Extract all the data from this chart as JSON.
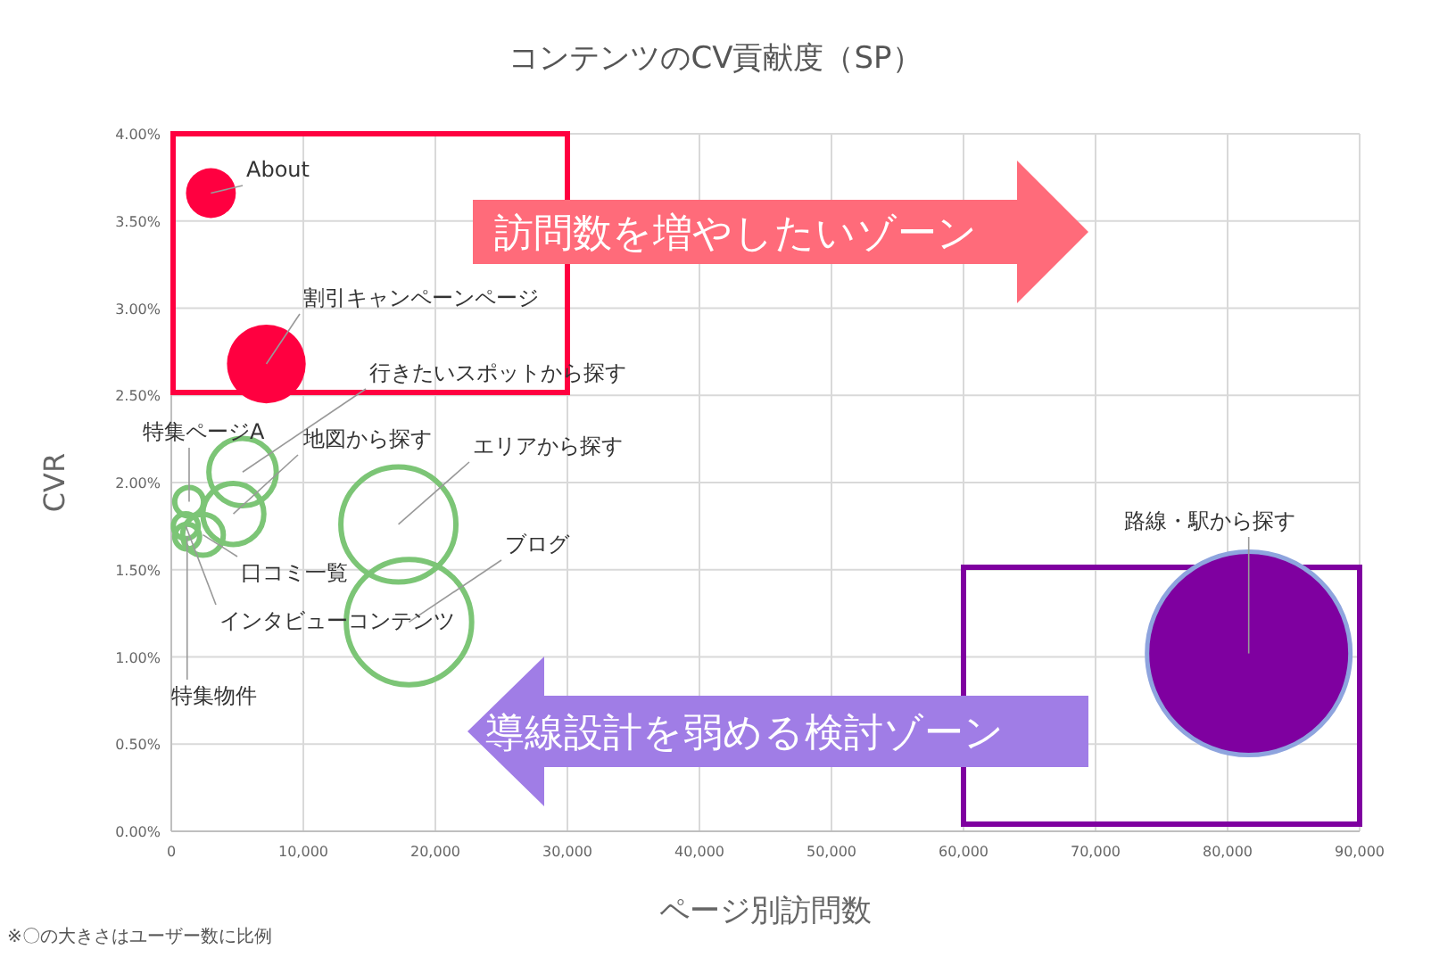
{
  "chart_data": {
    "type": "bubble",
    "title": "コンテンツのCV貢献度（SP）",
    "xlabel": "ページ別訪問数",
    "ylabel": "CVR",
    "series": [
      {
        "color": "#ff0040",
        "x": [
          3000,
          7200
        ],
        "values": [
          3.66,
          2.68
        ],
        "sizes": [
          0.06,
          0.15
        ]
      },
      {
        "color": "#7cc576",
        "x": [
          5400,
          4700,
          17200,
          18000,
          1350,
          2400,
          1100,
          1200
        ],
        "values": [
          2.06,
          1.82,
          1.76,
          1.2,
          1.89,
          1.7,
          1.75,
          1.69
        ],
        "sizes": [
          0.11,
          0.09,
          0.32,
          0.38,
          0.02,
          0.04,
          0.015,
          0.015
        ]
      },
      {
        "color": "#7f00a0",
        "x": [
          81600
        ],
        "values": [
          1.02
        ],
        "sizes": [
          1
        ]
      }
    ],
    "annotations": [
      {
        "text": "About",
        "x": 3000,
        "y": 3.66
      },
      {
        "text": "割引キャンペーンページ",
        "x": 7200,
        "y": 2.68
      },
      {
        "text": "行きたいスポットから探す",
        "x": 5400,
        "y": 2.06
      },
      {
        "text": "地図から探す",
        "x": 4700,
        "y": 1.82
      },
      {
        "text": "エリアから探す",
        "x": 17200,
        "y": 1.76
      },
      {
        "text": "ブログ",
        "x": 18000,
        "y": 1.2
      },
      {
        "text": "特集ページA",
        "x": 1350,
        "y": 1.89
      },
      {
        "text": "口コミ一覧",
        "x": 2400,
        "y": 1.7
      },
      {
        "text": "インタビューコンテンツ",
        "x": 1100,
        "y": 1.75
      },
      {
        "text": "特集物件",
        "x": 1200,
        "y": 1.69
      },
      {
        "text": "路線・駅から探す",
        "x": 81600,
        "y": 1.02
      },
      "訪問数を増やしたいゾーン",
      "導線設計を弱める検討ゾーン",
      "※〇の大きさはユーザー数に比例"
    ],
    "xlim": [
      0,
      90000
    ],
    "xticks": [
      0,
      {
        "value": 10000,
        "label": "10,000"
      },
      {
        "value": 20000,
        "label": "20,000"
      },
      {
        "value": 30000,
        "label": "30,000"
      },
      {
        "value": 40000,
        "label": "40,000"
      },
      {
        "value": 50000,
        "label": "50,000"
      },
      {
        "value": 60000,
        "label": "60,000"
      },
      {
        "value": 70000,
        "label": "70,000"
      },
      {
        "value": 80000,
        "label": "80,000"
      },
      {
        "value": 90000,
        "label": "90,000"
      }
    ],
    "ylim": [
      0,
      4
    ],
    "yticks": [
      {
        "value": 0,
        "label": "0.00%"
      },
      {
        "value": 0.5,
        "label": "0.50%"
      },
      {
        "value": 1,
        "label": "1.00%"
      },
      {
        "value": 1.5,
        "label": "1.50%"
      },
      {
        "value": 2,
        "label": "2.00%"
      },
      {
        "value": 2.5,
        "label": "2.50%"
      },
      {
        "value": 3,
        "label": "3.00%"
      },
      {
        "value": 3.5,
        "label": "3.50%"
      },
      {
        "value": 4,
        "label": "4.00%"
      }
    ],
    "grid": true
  }
}
